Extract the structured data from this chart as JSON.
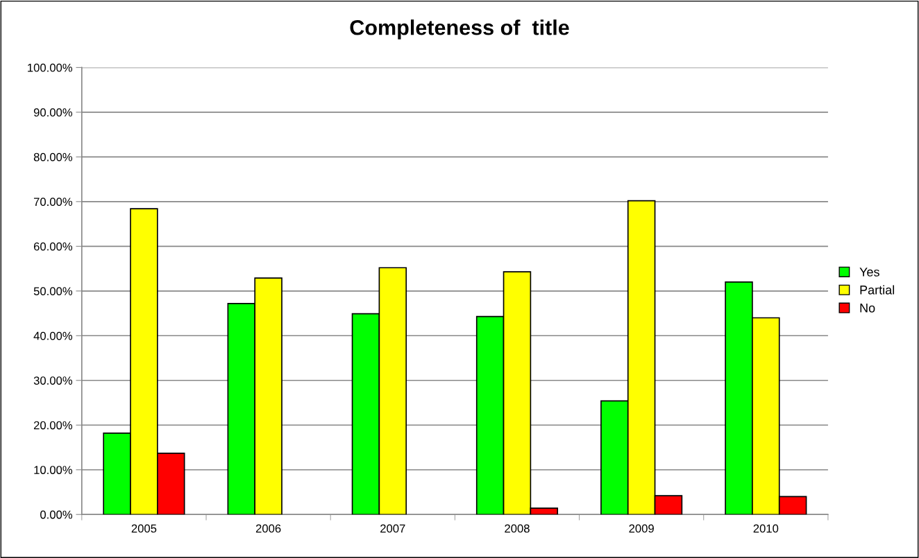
{
  "chart_data": {
    "type": "bar",
    "title": "Completeness of  title",
    "categories": [
      "2005",
      "2006",
      "2007",
      "2008",
      "2009",
      "2010"
    ],
    "series": [
      {
        "name": "Yes",
        "color": "#00ff00",
        "values": [
          18.2,
          47.2,
          44.9,
          44.3,
          25.4,
          52.0
        ]
      },
      {
        "name": "Partial",
        "color": "#ffff00",
        "values": [
          68.4,
          52.9,
          55.2,
          54.3,
          70.2,
          44.0
        ]
      },
      {
        "name": "No",
        "color": "#ff0000",
        "values": [
          13.7,
          null,
          null,
          1.4,
          4.2,
          4.0
        ]
      }
    ],
    "ylim": [
      0,
      100
    ],
    "yticks": [
      {
        "value": 0,
        "label": "0.00%"
      },
      {
        "value": 10,
        "label": "10.00%"
      },
      {
        "value": 20,
        "label": "20.00%"
      },
      {
        "value": 30,
        "label": "30.00%"
      },
      {
        "value": 40,
        "label": "40.00%"
      },
      {
        "value": 50,
        "label": "50.00%"
      },
      {
        "value": 60,
        "label": "60.00%"
      },
      {
        "value": 70,
        "label": "70.00%"
      },
      {
        "value": 80,
        "label": "80.00%"
      },
      {
        "value": 90,
        "label": "90.00%"
      },
      {
        "value": 100,
        "label": "100.00%"
      }
    ],
    "grid": "y",
    "legend": "right"
  }
}
